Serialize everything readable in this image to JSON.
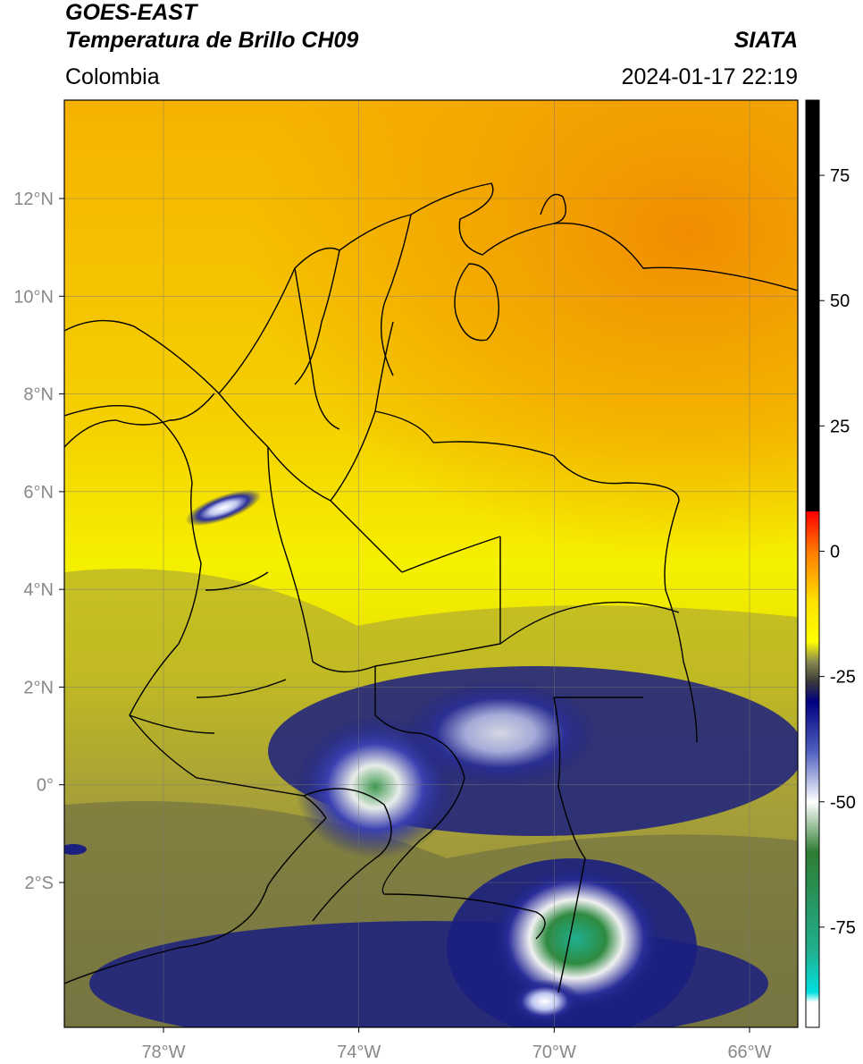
{
  "header": {
    "title": "GOES-EAST",
    "subtitle": "Temperatura de Brillo CH09",
    "organization": "SIATA",
    "region": "Colombia",
    "datetime": "2024-01-17 22:19"
  },
  "map": {
    "lon_range": [
      -80,
      -65
    ],
    "lat_range": [
      -5,
      14
    ],
    "lat_ticks": [
      {
        "value": 12,
        "label": "12°N"
      },
      {
        "value": 10,
        "label": "10°N"
      },
      {
        "value": 8,
        "label": "8°N"
      },
      {
        "value": 6,
        "label": "6°N"
      },
      {
        "value": 4,
        "label": "4°N"
      },
      {
        "value": 2,
        "label": "2°N"
      },
      {
        "value": 0,
        "label": "0°"
      },
      {
        "value": -2,
        "label": "2°S"
      }
    ],
    "lon_ticks": [
      {
        "value": -78,
        "label": "78°W"
      },
      {
        "value": -74,
        "label": "74°W"
      },
      {
        "value": -70,
        "label": "70°W"
      },
      {
        "value": -66,
        "label": "66°W"
      }
    ],
    "gridlines": true,
    "colors": {
      "warm": "#f29a00",
      "mid": "#f5e600",
      "cool": "#8a8a50",
      "cold": "#1a1f8a",
      "coldest": "#2e8a4a"
    }
  },
  "colorbar": {
    "range": [
      -95,
      90
    ],
    "ticks": [
      {
        "value": 75,
        "label": "75"
      },
      {
        "value": 50,
        "label": "50"
      },
      {
        "value": 25,
        "label": "25"
      },
      {
        "value": 0,
        "label": "0"
      },
      {
        "value": -25,
        "label": "-25"
      },
      {
        "value": -50,
        "label": "-50"
      },
      {
        "value": -75,
        "label": "-75"
      }
    ],
    "stops": [
      {
        "value": 90,
        "color": "#000000"
      },
      {
        "value": 8,
        "color": "#000000"
      },
      {
        "value": 7.9,
        "color": "#ff0000"
      },
      {
        "value": 0,
        "color": "#ff7a00"
      },
      {
        "value": -10,
        "color": "#ffe000"
      },
      {
        "value": -18,
        "color": "#ffff00"
      },
      {
        "value": -22,
        "color": "#8a8a50"
      },
      {
        "value": -26,
        "color": "#3a3a3a"
      },
      {
        "value": -30,
        "color": "#000080"
      },
      {
        "value": -40,
        "color": "#5060c0"
      },
      {
        "value": -50,
        "color": "#ffffff"
      },
      {
        "value": -60,
        "color": "#2e7d32"
      },
      {
        "value": -80,
        "color": "#20b090"
      },
      {
        "value": -88,
        "color": "#00e0e0"
      },
      {
        "value": -90,
        "color": "#ffffff"
      },
      {
        "value": -95,
        "color": "#ffffff"
      }
    ]
  }
}
